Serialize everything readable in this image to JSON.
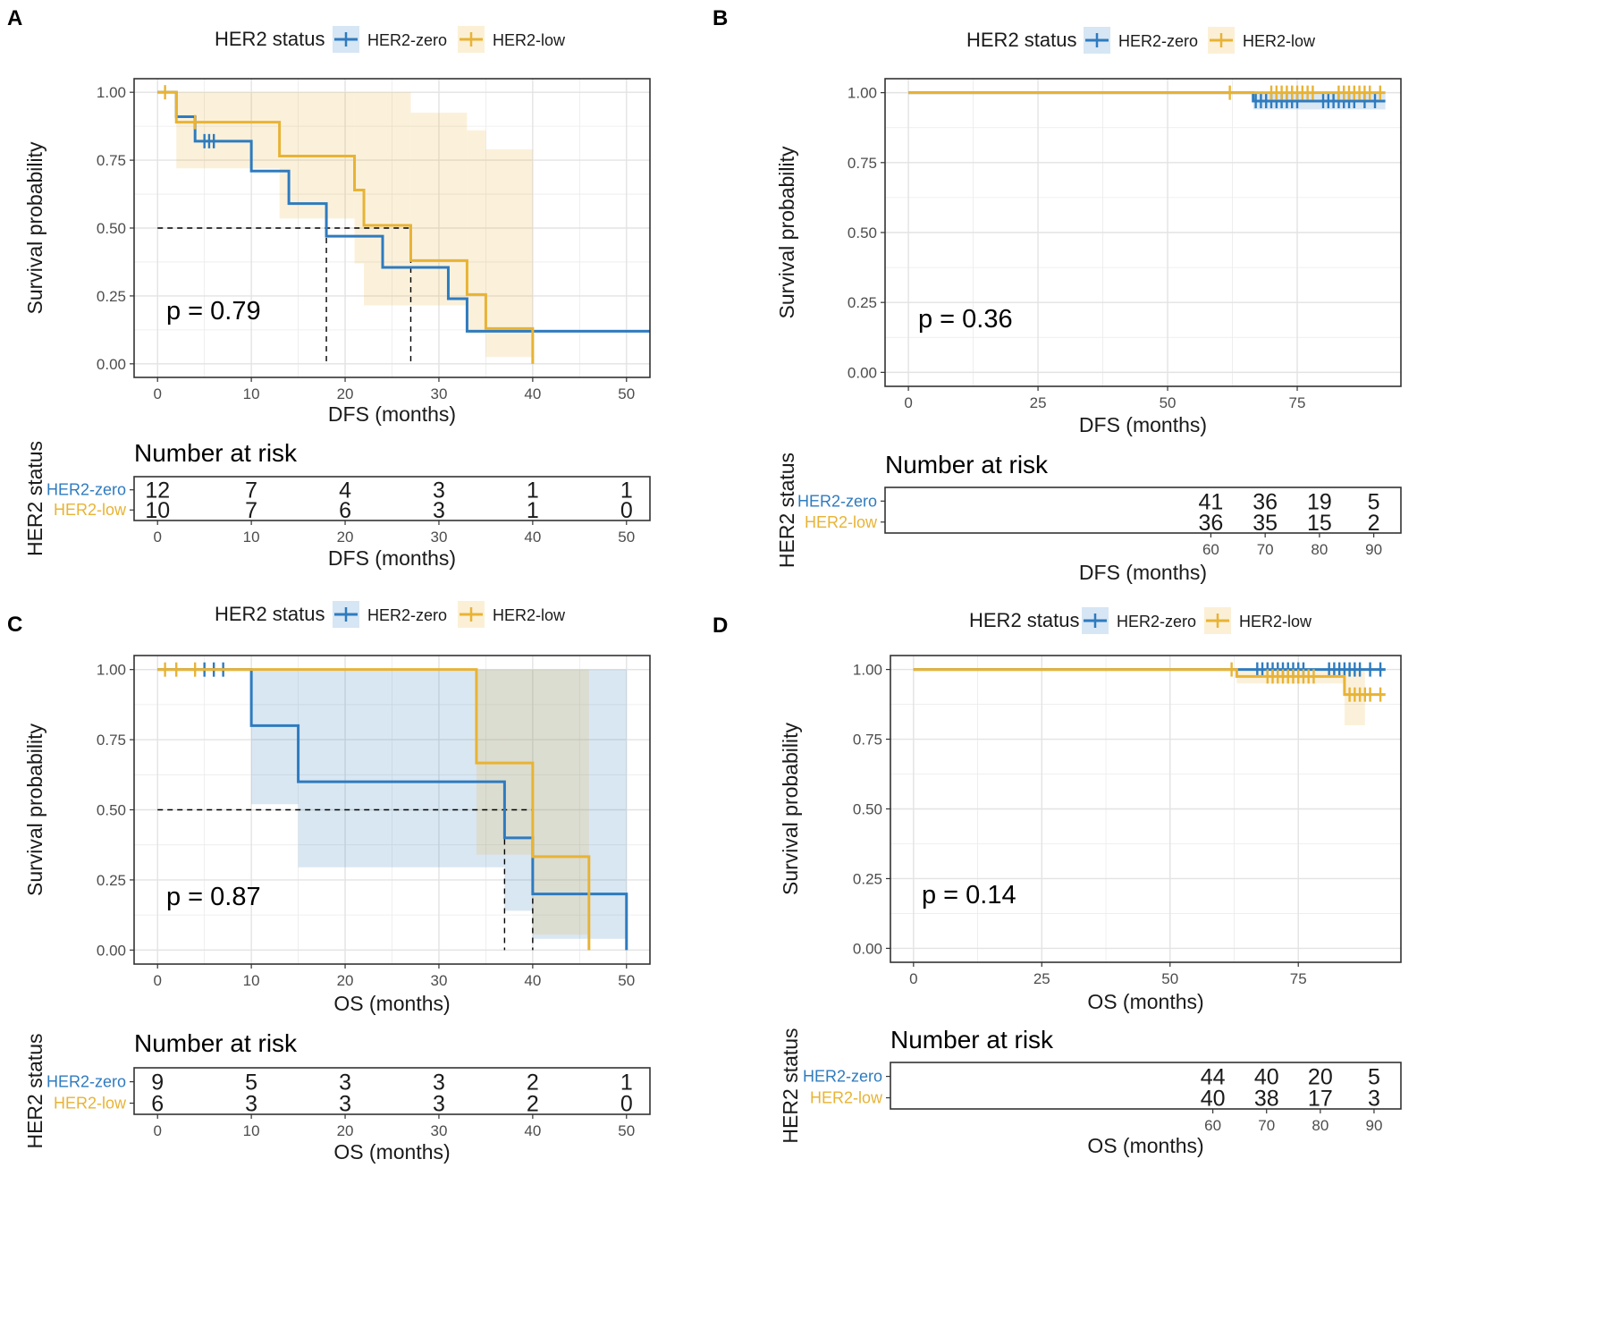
{
  "figure": {
    "colors": {
      "her2_zero": "#2E7BBF",
      "her2_low": "#E8B335",
      "grid": "#EBEBEB",
      "frame": "#333333"
    }
  },
  "chart_data": [
    {
      "id": "A",
      "type": "line",
      "panel_label": "A",
      "legend_title": "HER2 status",
      "legend_entries": [
        "HER2-zero",
        "HER2-low"
      ],
      "xlabel": "DFS (months)",
      "ylabel": "Survival probability",
      "xlim": [
        -2.5,
        52.5
      ],
      "ylim": [
        -0.05,
        1.05
      ],
      "xticks": [
        0,
        10,
        20,
        30,
        40,
        50
      ],
      "yticks": [
        0,
        0.25,
        0.5,
        0.75,
        1.0
      ],
      "ytick_labels": [
        "0.00",
        "0.25",
        "0.50",
        "0.75",
        "1.00"
      ],
      "p_value": "p = 0.79",
      "median_lines": [
        {
          "x": 18,
          "y": 0.5
        },
        {
          "x": 27,
          "y": 0.5
        }
      ],
      "series": [
        {
          "name": "HER2-zero",
          "color": "#2E7BBF",
          "steps": [
            [
              0,
              1.0
            ],
            [
              2,
              0.91
            ],
            [
              4,
              0.82
            ],
            [
              10,
              0.71
            ],
            [
              14,
              0.59
            ],
            [
              18,
              0.47
            ],
            [
              24,
              0.355
            ],
            [
              31,
              0.24
            ],
            [
              33,
              0.12
            ],
            [
              52.5,
              0.12
            ]
          ],
          "censor": [
            [
              5,
              0.82
            ],
            [
              5.5,
              0.82
            ],
            [
              6,
              0.82
            ]
          ],
          "ci": []
        },
        {
          "name": "HER2-low",
          "color": "#E8B335",
          "steps": [
            [
              0,
              1.0
            ],
            [
              2,
              0.89
            ],
            [
              13,
              0.765
            ],
            [
              21,
              0.64
            ],
            [
              22,
              0.51
            ],
            [
              27,
              0.38
            ],
            [
              33,
              0.255
            ],
            [
              35,
              0.13
            ],
            [
              40,
              0.0
            ]
          ],
          "censor": [
            [
              0.8,
              1.0
            ],
            [
              4,
              0.89
            ]
          ],
          "ci": [
            [
              2,
              0.72,
              1.0
            ],
            [
              13,
              0.535,
              1.0
            ],
            [
              21,
              0.37,
              1.0
            ],
            [
              22,
              0.215,
              1.0
            ],
            [
              27,
              0.215,
              0.925
            ],
            [
              33,
              0.11,
              0.86
            ],
            [
              35,
              0.025,
              0.79
            ],
            [
              40,
              0.025,
              0.79
            ]
          ]
        }
      ],
      "risk_table": {
        "title": "Number at risk",
        "ylabel": "HER2 status",
        "xlabel": "DFS (months)",
        "xticks": [
          0,
          10,
          20,
          30,
          40,
          50
        ],
        "rows": [
          {
            "group": "HER2-zero",
            "values": [
              12,
              7,
              4,
              3,
              1,
              1
            ]
          },
          {
            "group": "HER2-low",
            "values": [
              10,
              7,
              6,
              3,
              1,
              0
            ]
          }
        ]
      }
    },
    {
      "id": "B",
      "type": "line",
      "panel_label": "B",
      "legend_title": "HER2 status",
      "legend_entries": [
        "HER2-zero",
        "HER2-low"
      ],
      "xlabel": "DFS (months)",
      "ylabel": "Survival probability",
      "xlim": [
        -4.5,
        95
      ],
      "ylim": [
        -0.05,
        1.05
      ],
      "xticks": [
        0,
        25,
        50,
        75
      ],
      "yticks": [
        0,
        0.25,
        0.5,
        0.75,
        1.0
      ],
      "ytick_labels": [
        "0.00",
        "0.25",
        "0.50",
        "0.75",
        "1.00"
      ],
      "p_value": "p = 0.36",
      "median_lines": [],
      "series": [
        {
          "name": "HER2-zero",
          "color": "#2E7BBF",
          "steps": [
            [
              0,
              1.0
            ],
            [
              66.5,
              0.97
            ],
            [
              92,
              0.97
            ]
          ],
          "censor": [
            [
              67,
              0.97
            ],
            [
              68,
              0.97
            ],
            [
              69,
              0.97
            ],
            [
              70,
              0.97
            ],
            [
              71,
              0.97
            ],
            [
              72,
              0.97
            ],
            [
              73,
              0.97
            ],
            [
              74,
              0.97
            ],
            [
              75,
              0.97
            ],
            [
              80,
              0.97
            ],
            [
              81,
              0.97
            ],
            [
              82,
              0.97
            ],
            [
              83,
              0.97
            ],
            [
              84,
              0.97
            ],
            [
              85,
              0.97
            ],
            [
              86,
              0.97
            ],
            [
              88,
              0.97
            ],
            [
              90,
              0.97
            ]
          ],
          "ci": [
            [
              66.5,
              0.94,
              1.0
            ],
            [
              92,
              0.94,
              1.0
            ]
          ]
        },
        {
          "name": "HER2-low",
          "color": "#E8B335",
          "steps": [
            [
              0,
              1.0
            ],
            [
              92,
              1.0
            ]
          ],
          "censor": [
            [
              62,
              1.0
            ],
            [
              70,
              1.0
            ],
            [
              71,
              1.0
            ],
            [
              72,
              1.0
            ],
            [
              73,
              1.0
            ],
            [
              74,
              1.0
            ],
            [
              75,
              1.0
            ],
            [
              76,
              1.0
            ],
            [
              77,
              1.0
            ],
            [
              78,
              1.0
            ],
            [
              83,
              1.0
            ],
            [
              84,
              1.0
            ],
            [
              85,
              1.0
            ],
            [
              86,
              1.0
            ],
            [
              87,
              1.0
            ],
            [
              88,
              1.0
            ],
            [
              89,
              1.0
            ],
            [
              91,
              1.0
            ]
          ],
          "ci": []
        }
      ],
      "risk_table": {
        "title": "Number at risk",
        "ylabel": "HER2 status",
        "xlabel": "DFS (months)",
        "xticks": [
          60,
          70,
          80,
          90
        ],
        "rows": [
          {
            "group": "HER2-zero",
            "values": [
              41,
              36,
              19,
              5
            ]
          },
          {
            "group": "HER2-low",
            "values": [
              36,
              35,
              15,
              2
            ]
          }
        ]
      }
    },
    {
      "id": "C",
      "type": "line",
      "panel_label": "C",
      "legend_title": "HER2 status",
      "legend_entries": [
        "HER2-zero",
        "HER2-low"
      ],
      "xlabel": "OS (months)",
      "ylabel": "Survival probability",
      "xlim": [
        -2.5,
        52.5
      ],
      "ylim": [
        -0.05,
        1.05
      ],
      "xticks": [
        0,
        10,
        20,
        30,
        40,
        50
      ],
      "yticks": [
        0,
        0.25,
        0.5,
        0.75,
        1.0
      ],
      "ytick_labels": [
        "0.00",
        "0.25",
        "0.50",
        "0.75",
        "1.00"
      ],
      "p_value": "p = 0.87",
      "median_lines": [
        {
          "x": 37,
          "y": 0.5
        },
        {
          "x": 40,
          "y": 0.5
        }
      ],
      "series": [
        {
          "name": "HER2-zero",
          "color": "#2E7BBF",
          "steps": [
            [
              0,
              1.0
            ],
            [
              10,
              0.8
            ],
            [
              15,
              0.6
            ],
            [
              37,
              0.4
            ],
            [
              40,
              0.2
            ],
            [
              50,
              0.0
            ]
          ],
          "censor": [
            [
              5,
              1.0
            ],
            [
              6,
              1.0
            ],
            [
              7,
              1.0
            ]
          ],
          "ci": [
            [
              10,
              0.52,
              1.0
            ],
            [
              15,
              0.295,
              1.0
            ],
            [
              37,
              0.14,
              1.0
            ],
            [
              40,
              0.04,
              1.0
            ],
            [
              50,
              0.04,
              1.0
            ]
          ]
        },
        {
          "name": "HER2-low",
          "color": "#E8B335",
          "steps": [
            [
              0,
              1.0
            ],
            [
              34,
              0.667
            ],
            [
              40,
              0.333
            ],
            [
              46,
              0.0
            ]
          ],
          "censor": [
            [
              0.8,
              1.0
            ],
            [
              2,
              1.0
            ],
            [
              4,
              1.0
            ]
          ],
          "ci": [
            [
              34,
              0.34,
              1.0
            ],
            [
              40,
              0.055,
              1.0
            ],
            [
              46,
              0.055,
              1.0
            ]
          ]
        }
      ],
      "risk_table": {
        "title": "Number at risk",
        "ylabel": "HER2 status",
        "xlabel": "OS (months)",
        "xticks": [
          0,
          10,
          20,
          30,
          40,
          50
        ],
        "rows": [
          {
            "group": "HER2-zero",
            "values": [
              9,
              5,
              3,
              3,
              2,
              1
            ]
          },
          {
            "group": "HER2-low",
            "values": [
              6,
              3,
              3,
              3,
              2,
              0
            ]
          }
        ]
      }
    },
    {
      "id": "D",
      "type": "line",
      "panel_label": "D",
      "legend_title": "HER2 status",
      "legend_entries": [
        "HER2-zero",
        "HER2-low"
      ],
      "xlabel": "OS (months)",
      "ylabel": "Survival probability",
      "xlim": [
        -4.5,
        95
      ],
      "ylim": [
        -0.05,
        1.05
      ],
      "xticks": [
        0,
        25,
        50,
        75
      ],
      "yticks": [
        0,
        0.25,
        0.5,
        0.75,
        1.0
      ],
      "ytick_labels": [
        "0.00",
        "0.25",
        "0.50",
        "0.75",
        "1.00"
      ],
      "p_value": "p = 0.14",
      "median_lines": [],
      "series": [
        {
          "name": "HER2-zero",
          "color": "#2E7BBF",
          "steps": [
            [
              0,
              1.0
            ],
            [
              92,
              1.0
            ]
          ],
          "censor": [
            [
              67,
              1.0
            ],
            [
              68,
              1.0
            ],
            [
              69,
              1.0
            ],
            [
              70,
              1.0
            ],
            [
              71,
              1.0
            ],
            [
              72,
              1.0
            ],
            [
              73,
              1.0
            ],
            [
              74,
              1.0
            ],
            [
              75,
              1.0
            ],
            [
              76,
              1.0
            ],
            [
              81,
              1.0
            ],
            [
              82,
              1.0
            ],
            [
              83,
              1.0
            ],
            [
              84,
              1.0
            ],
            [
              85,
              1.0
            ],
            [
              86,
              1.0
            ],
            [
              87,
              1.0
            ],
            [
              89,
              1.0
            ],
            [
              91,
              1.0
            ]
          ],
          "ci": []
        },
        {
          "name": "HER2-low",
          "color": "#E8B335",
          "steps": [
            [
              0,
              1.0
            ],
            [
              63,
              0.975
            ],
            [
              84,
              0.91
            ],
            [
              92,
              0.91
            ]
          ],
          "censor": [
            [
              62,
              1.0
            ],
            [
              69,
              0.975
            ],
            [
              70,
              0.975
            ],
            [
              71,
              0.975
            ],
            [
              72,
              0.975
            ],
            [
              73,
              0.975
            ],
            [
              74,
              0.975
            ],
            [
              75,
              0.975
            ],
            [
              76,
              0.975
            ],
            [
              77,
              0.975
            ],
            [
              78,
              0.975
            ],
            [
              85,
              0.91
            ],
            [
              86,
              0.91
            ],
            [
              87,
              0.91
            ],
            [
              88,
              0.91
            ],
            [
              89,
              0.91
            ],
            [
              91,
              0.91
            ]
          ],
          "ci": [
            [
              63,
              0.95,
              1.0
            ],
            [
              84,
              0.8,
              1.0
            ],
            [
              88,
              0.8,
              1.0
            ]
          ]
        }
      ],
      "risk_table": {
        "title": "Number at risk",
        "ylabel": "HER2 status",
        "xlabel": "OS (months)",
        "xticks": [
          60,
          70,
          80,
          90
        ],
        "rows": [
          {
            "group": "HER2-zero",
            "values": [
              44,
              40,
              20,
              5
            ]
          },
          {
            "group": "HER2-low",
            "values": [
              40,
              38,
              17,
              3
            ]
          }
        ]
      }
    }
  ]
}
